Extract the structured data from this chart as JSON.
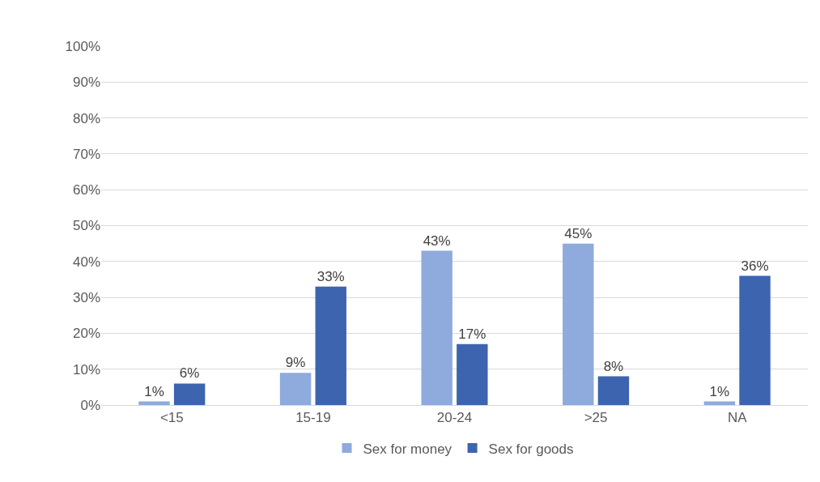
{
  "chart_data": {
    "type": "bar",
    "categories": [
      "<15",
      "15-19",
      "20-24",
      ">25",
      "NA"
    ],
    "series": [
      {
        "name": "Sex for money",
        "color": "#8faadc",
        "values": [
          1,
          9,
          43,
          45,
          1
        ],
        "value_labels": [
          "1%",
          "9%",
          "43%",
          "45%",
          "1%"
        ]
      },
      {
        "name": "Sex for goods",
        "color": "#3d64ae",
        "values": [
          6,
          33,
          17,
          8,
          36
        ],
        "value_labels": [
          "6%",
          "33%",
          "17%",
          "8%",
          "36%"
        ]
      }
    ],
    "ylim": [
      0,
      100
    ],
    "yticks": [
      {
        "value": 0,
        "label": "0%"
      },
      {
        "value": 10,
        "label": "10%"
      },
      {
        "value": 20,
        "label": "20%"
      },
      {
        "value": 30,
        "label": "30%"
      },
      {
        "value": 40,
        "label": "40%"
      },
      {
        "value": 50,
        "label": "50%"
      },
      {
        "value": 60,
        "label": "60%"
      },
      {
        "value": 70,
        "label": "70%"
      },
      {
        "value": 80,
        "label": "80%"
      },
      {
        "value": 90,
        "label": "90%"
      },
      {
        "value": 100,
        "label": "100%"
      }
    ],
    "grid": "y",
    "legend": "bottom"
  }
}
